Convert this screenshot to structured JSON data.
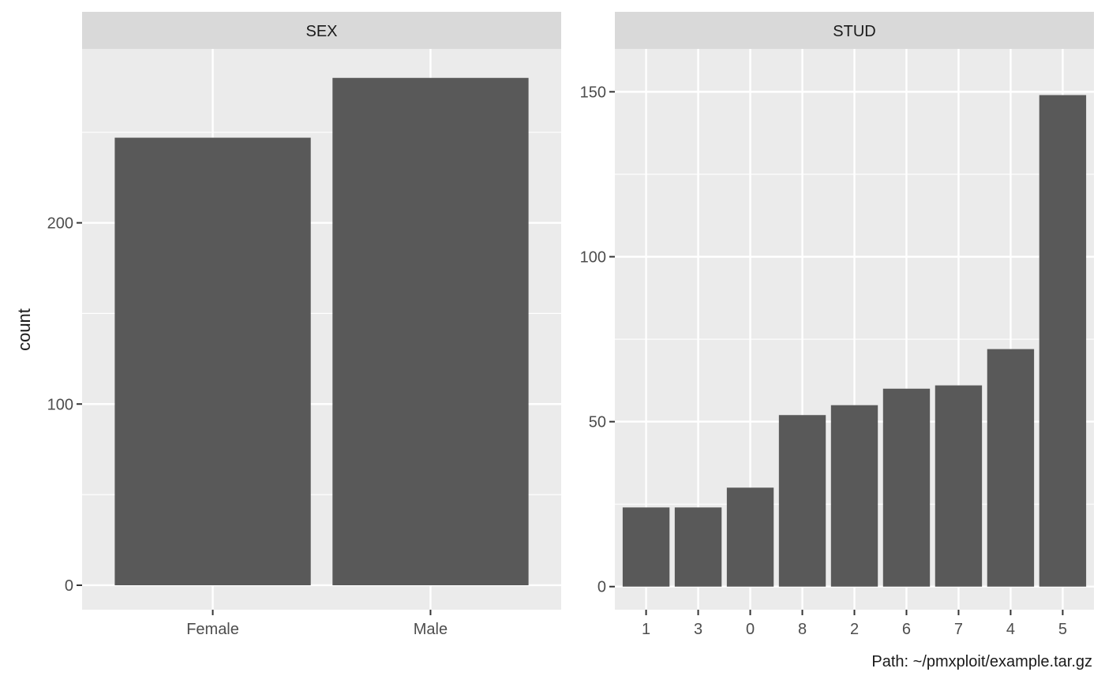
{
  "ylabel": "count",
  "caption": "Path: ~/pmxploit/example.tar.gz",
  "colors": {
    "panel_bg": "#EBEBEB",
    "strip_bg": "#D9D9D9",
    "grid": "#FFFFFF",
    "bar": "#595959",
    "tick_text": "#4D4D4D",
    "text": "#1A1A1A"
  },
  "chart_data": [
    {
      "type": "bar",
      "facet": "SEX",
      "categories": [
        "Female",
        "Male"
      ],
      "values": [
        247,
        280
      ],
      "ylim": [
        -13.5,
        296
      ],
      "yticks": [
        0,
        100,
        200
      ],
      "grid": true
    },
    {
      "type": "bar",
      "facet": "STUD",
      "categories": [
        "1",
        "3",
        "0",
        "8",
        "2",
        "6",
        "7",
        "4",
        "5"
      ],
      "values": [
        24,
        24,
        30,
        52,
        55,
        60,
        61,
        72,
        149
      ],
      "ylim": [
        -7,
        163
      ],
      "yticks": [
        0,
        50,
        100,
        150
      ],
      "grid": true
    }
  ]
}
